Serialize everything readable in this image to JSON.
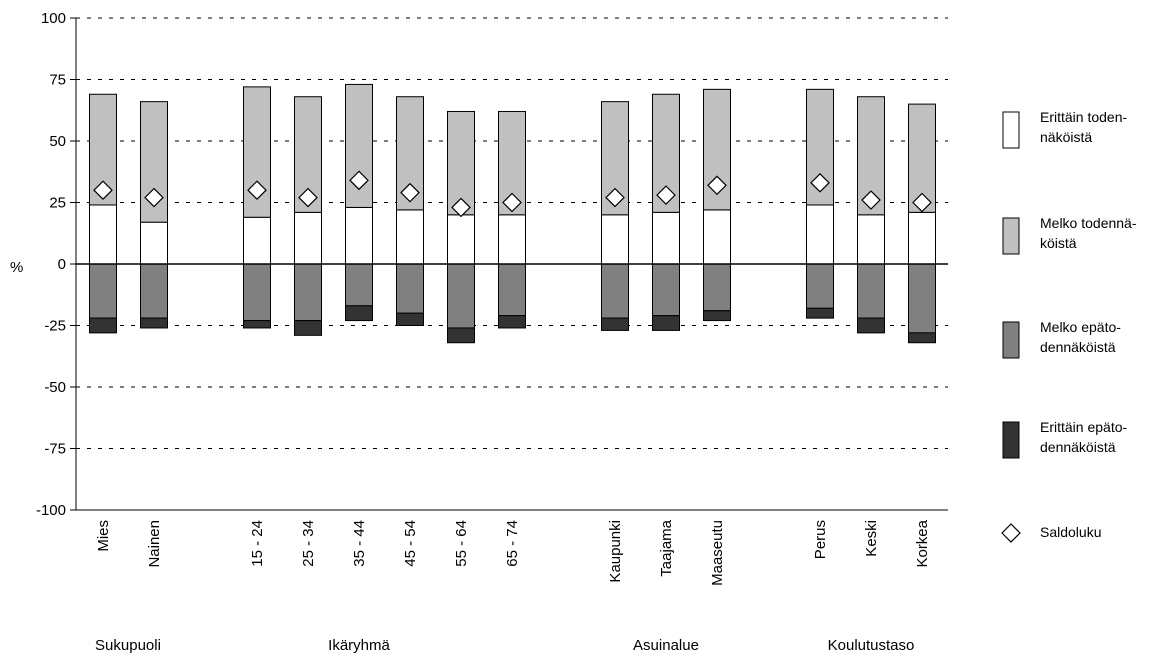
{
  "chart_data": {
    "type": "bar",
    "stacked": true,
    "ylabel": "%",
    "ylim": [
      -100,
      100
    ],
    "yticks": [
      100,
      75,
      50,
      25,
      0,
      -25,
      -50,
      -75,
      -100
    ],
    "grid": "dashed-horizontal",
    "legend_position": "right",
    "categories": [
      "Mies",
      "Nainen",
      "15 - 24",
      "25 - 34",
      "35 - 44",
      "45 - 54",
      "55 - 64",
      "65 - 74",
      "Kaupunki",
      "Taajama",
      "Maaseutu",
      "Perus",
      "Keski",
      "Korkea"
    ],
    "groups": [
      {
        "label": "Sukupuoli",
        "categories": [
          "Mies",
          "Nainen"
        ]
      },
      {
        "label": "Ikäryhmä",
        "categories": [
          "15 - 24",
          "25 - 34",
          "35 - 44",
          "45 - 54",
          "55 - 64",
          "65 - 74"
        ]
      },
      {
        "label": "Asuinalue",
        "categories": [
          "Kaupunki",
          "Taajama",
          "Maaseutu"
        ]
      },
      {
        "label": "Koulutustaso",
        "categories": [
          "Perus",
          "Keski",
          "Korkea"
        ]
      }
    ],
    "series": [
      {
        "name": "Erittäin todennäköistä",
        "color": "#ffffff",
        "values": [
          24,
          17,
          19,
          21,
          23,
          22,
          20,
          20,
          20,
          21,
          22,
          24,
          20,
          21
        ]
      },
      {
        "name": "Melko todennäköistä",
        "color": "#c0c0c0",
        "values": [
          45,
          49,
          53,
          47,
          50,
          46,
          42,
          42,
          46,
          48,
          49,
          47,
          48,
          44
        ]
      },
      {
        "name": "Melko epätodennäköistä",
        "color": "#808080",
        "values": [
          -22,
          -22,
          -23,
          -23,
          -17,
          -20,
          -26,
          -21,
          -22,
          -21,
          -19,
          -18,
          -22,
          -28
        ]
      },
      {
        "name": "Erittäin epätodennäköistä",
        "color": "#333333",
        "values": [
          -6,
          -4,
          -3,
          -6,
          -6,
          -5,
          -6,
          -5,
          -5,
          -6,
          -4,
          -4,
          -6,
          -4
        ]
      }
    ],
    "marker_series": {
      "name": "Saldoluku",
      "marker": "diamond",
      "values": [
        30,
        27,
        30,
        27,
        34,
        29,
        23,
        25,
        27,
        28,
        32,
        33,
        26,
        25
      ]
    },
    "legend": [
      {
        "label": "Erittäin todennäköistä",
        "symbol": "box",
        "color": "#ffffff"
      },
      {
        "label": "Melko todennäköistä",
        "symbol": "box",
        "color": "#c0c0c0"
      },
      {
        "label": "Melko epätodennäköistä",
        "symbol": "box",
        "color": "#808080"
      },
      {
        "label": "Erittäin epätodennäköistä",
        "symbol": "box",
        "color": "#333333"
      },
      {
        "label": "Saldoluku",
        "symbol": "diamond",
        "color": "#ffffff"
      }
    ]
  }
}
